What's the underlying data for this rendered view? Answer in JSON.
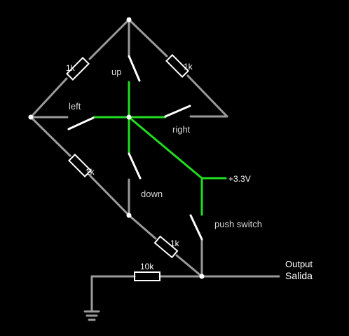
{
  "switches": {
    "up": "up",
    "left": "left",
    "right": "right",
    "down": "down",
    "push": "push switch"
  },
  "resistors": {
    "top_left": "1k",
    "top_right": "1k",
    "lower_left": "1k",
    "bottom": "1k",
    "pulldown": "10k"
  },
  "supply": "+3.3V",
  "output": {
    "line1": "Output",
    "line2": "Salida"
  },
  "colors": {
    "wire": "#9a9a9a",
    "live": "#22dd22",
    "component": "#ffffff",
    "background": "#000000"
  }
}
